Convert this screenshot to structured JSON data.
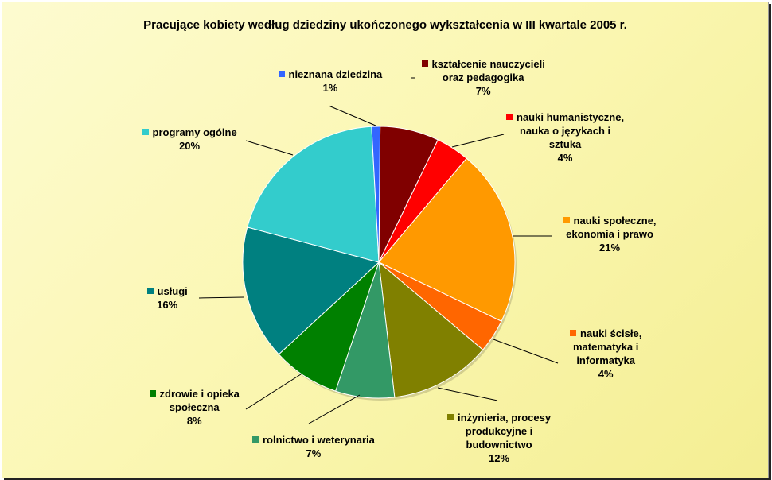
{
  "chart_data": {
    "type": "pie",
    "title": "Pracujące kobiety według dziedziny ukończonego wykształcenia w III kwartale 2005 r.",
    "slices": [
      {
        "lines": [
          "kształcenie nauczycieli",
          "oraz pedagogika"
        ],
        "value": 7,
        "pct": "7%",
        "color": "#800000"
      },
      {
        "lines": [
          "nauki humanistyczne,",
          "nauka o językach i",
          "sztuka"
        ],
        "value": 4,
        "pct": "4%",
        "color": "#ff0000"
      },
      {
        "lines": [
          "nauki społeczne,",
          "ekonomia i prawo"
        ],
        "value": 21,
        "pct": "21%",
        "color": "#ff9900"
      },
      {
        "lines": [
          "nauki ścisłe,",
          "matematyka i",
          "informatyka"
        ],
        "value": 4,
        "pct": "4%",
        "color": "#ff6600"
      },
      {
        "lines": [
          "inżynieria, procesy",
          "produkcyjne i",
          "budownictwo"
        ],
        "value": 12,
        "pct": "12%",
        "color": "#808000"
      },
      {
        "lines": [
          "rolnictwo i weterynaria"
        ],
        "value": 7,
        "pct": "7%",
        "color": "#339966"
      },
      {
        "lines": [
          "zdrowie i opieka",
          "społeczna"
        ],
        "value": 8,
        "pct": "8%",
        "color": "#008000"
      },
      {
        "lines": [
          "usługi"
        ],
        "value": 16,
        "pct": "16%",
        "color": "#008080"
      },
      {
        "lines": [
          "programy ogólne"
        ],
        "value": 20,
        "pct": "20%",
        "color": "#33cccc"
      },
      {
        "lines": [
          "nieznana dziedzina"
        ],
        "value": 1,
        "pct": "1%",
        "color": "#3366ff"
      }
    ]
  }
}
